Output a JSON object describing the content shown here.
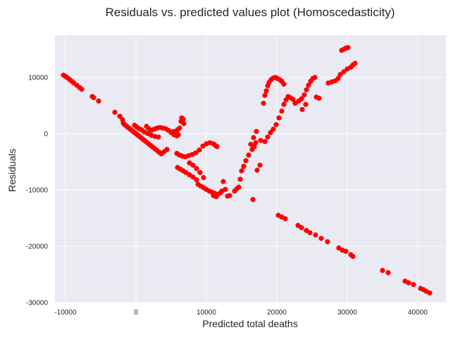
{
  "chart_data": {
    "type": "scatter",
    "title": "Residuals vs. predicted values plot (Homoscedasticity)",
    "xlabel": "Predicted total deaths",
    "ylabel": "Residuals",
    "xlim": [
      -11500,
      44000
    ],
    "ylim": [
      -30000,
      17500
    ],
    "xticks": [
      -10000,
      0,
      10000,
      20000,
      30000,
      40000
    ],
    "yticks": [
      -30000,
      -20000,
      -10000,
      0,
      10000
    ],
    "grid": true,
    "background_color": "#eaeaf2",
    "point_color": "#ff0000",
    "points": [
      [
        -10300,
        10400
      ],
      [
        -10000,
        10200
      ],
      [
        -9700,
        9900
      ],
      [
        -9400,
        9600
      ],
      [
        -9100,
        9300
      ],
      [
        -8800,
        9000
      ],
      [
        -8400,
        8600
      ],
      [
        -8000,
        8200
      ],
      [
        -7700,
        7900
      ],
      [
        -6200,
        6600
      ],
      [
        -6000,
        6400
      ],
      [
        -5300,
        5800
      ],
      [
        -3000,
        3800
      ],
      [
        -2300,
        3100
      ],
      [
        -1900,
        2500
      ],
      [
        -1800,
        1900
      ],
      [
        -1700,
        1700
      ],
      [
        -1500,
        1500
      ],
      [
        -1300,
        1300
      ],
      [
        -1100,
        1100
      ],
      [
        -900,
        900
      ],
      [
        -700,
        700
      ],
      [
        -500,
        500
      ],
      [
        -300,
        300
      ],
      [
        -100,
        100
      ],
      [
        100,
        -100
      ],
      [
        300,
        -300
      ],
      [
        500,
        -500
      ],
      [
        700,
        -700
      ],
      [
        900,
        -900
      ],
      [
        1100,
        -1100
      ],
      [
        1300,
        -1300
      ],
      [
        1500,
        -1500
      ],
      [
        1800,
        -1800
      ],
      [
        2100,
        -2100
      ],
      [
        2400,
        -2400
      ],
      [
        2700,
        -2700
      ],
      [
        3000,
        -3000
      ],
      [
        3300,
        -3300
      ],
      [
        3600,
        -3600
      ],
      [
        4000,
        -3200
      ],
      [
        4400,
        -2800
      ],
      [
        -200,
        1500
      ],
      [
        100,
        1200
      ],
      [
        400,
        900
      ],
      [
        800,
        700
      ],
      [
        1200,
        300
      ],
      [
        1700,
        0
      ],
      [
        2200,
        -300
      ],
      [
        2700,
        -500
      ],
      [
        3200,
        -600
      ],
      [
        1500,
        1300
      ],
      [
        1800,
        900
      ],
      [
        2200,
        600
      ],
      [
        2600,
        800
      ],
      [
        3000,
        1000
      ],
      [
        3400,
        1100
      ],
      [
        3800,
        1000
      ],
      [
        4200,
        900
      ],
      [
        4600,
        600
      ],
      [
        5000,
        200
      ],
      [
        5400,
        -200
      ],
      [
        5800,
        -400
      ],
      [
        6000,
        -200
      ],
      [
        5700,
        100
      ],
      [
        5300,
        400
      ],
      [
        6400,
        2200
      ],
      [
        6500,
        2800
      ],
      [
        6700,
        2600
      ],
      [
        6800,
        1800
      ],
      [
        6200,
        1000
      ],
      [
        5900,
        700
      ],
      [
        5800,
        -3500
      ],
      [
        6200,
        -3800
      ],
      [
        6600,
        -4000
      ],
      [
        7000,
        -4100
      ],
      [
        7500,
        -3900
      ],
      [
        8000,
        -3700
      ],
      [
        8500,
        -3400
      ],
      [
        9000,
        -2900
      ],
      [
        9500,
        -2200
      ],
      [
        10000,
        -1800
      ],
      [
        10500,
        -1600
      ],
      [
        11000,
        -1800
      ],
      [
        11300,
        -2100
      ],
      [
        11500,
        -2300
      ],
      [
        5900,
        -6000
      ],
      [
        6300,
        -6300
      ],
      [
        6700,
        -6600
      ],
      [
        7100,
        -6900
      ],
      [
        7600,
        -7300
      ],
      [
        8100,
        -7700
      ],
      [
        8600,
        -8200
      ],
      [
        7600,
        -5200
      ],
      [
        8100,
        -5600
      ],
      [
        8600,
        -6200
      ],
      [
        9100,
        -6900
      ],
      [
        9600,
        -7800
      ],
      [
        8800,
        -9000
      ],
      [
        9200,
        -9300
      ],
      [
        9600,
        -9600
      ],
      [
        10000,
        -9900
      ],
      [
        10400,
        -10200
      ],
      [
        10800,
        -10400
      ],
      [
        11200,
        -10600
      ],
      [
        11600,
        -10800
      ],
      [
        12000,
        -10500
      ],
      [
        12200,
        -10200
      ],
      [
        11000,
        -11000
      ],
      [
        11400,
        -11200
      ],
      [
        12400,
        -8500
      ],
      [
        12700,
        -9900
      ],
      [
        13000,
        -11100
      ],
      [
        13300,
        -11000
      ],
      [
        14000,
        -10200
      ],
      [
        14300,
        -9800
      ],
      [
        14600,
        -9500
      ],
      [
        14800,
        -8100
      ],
      [
        15000,
        -6600
      ],
      [
        15300,
        -5800
      ],
      [
        15600,
        -4800
      ],
      [
        16000,
        -3800
      ],
      [
        16500,
        -2800
      ],
      [
        16800,
        -2300
      ],
      [
        17000,
        -1600
      ],
      [
        16600,
        -11700
      ],
      [
        17200,
        -6500
      ],
      [
        17600,
        -5600
      ],
      [
        16300,
        -1900
      ],
      [
        16700,
        -700
      ],
      [
        17100,
        400
      ],
      [
        17700,
        -1200
      ],
      [
        18100,
        5400
      ],
      [
        18300,
        6800
      ],
      [
        18500,
        7600
      ],
      [
        18700,
        8500
      ],
      [
        18900,
        9100
      ],
      [
        19200,
        9600
      ],
      [
        19500,
        9900
      ],
      [
        19800,
        10000
      ],
      [
        20100,
        9800
      ],
      [
        20400,
        9600
      ],
      [
        20700,
        9300
      ],
      [
        21000,
        8800
      ],
      [
        18300,
        -1400
      ],
      [
        18700,
        -600
      ],
      [
        19100,
        200
      ],
      [
        19500,
        800
      ],
      [
        19900,
        1600
      ],
      [
        20300,
        2800
      ],
      [
        20700,
        4000
      ],
      [
        21000,
        5200
      ],
      [
        21300,
        6000
      ],
      [
        21600,
        6600
      ],
      [
        21900,
        6400
      ],
      [
        22300,
        6100
      ],
      [
        22600,
        5400
      ],
      [
        23100,
        5800
      ],
      [
        23500,
        6200
      ],
      [
        23900,
        6900
      ],
      [
        24200,
        7800
      ],
      [
        24500,
        8600
      ],
      [
        24800,
        9300
      ],
      [
        25100,
        9800
      ],
      [
        25400,
        10000
      ],
      [
        23600,
        4300
      ],
      [
        24100,
        5200
      ],
      [
        25600,
        6500
      ],
      [
        26000,
        6300
      ],
      [
        20200,
        -14500
      ],
      [
        20700,
        -14800
      ],
      [
        21200,
        -15100
      ],
      [
        23000,
        -16300
      ],
      [
        23500,
        -16700
      ],
      [
        24200,
        -17200
      ],
      [
        24700,
        -17600
      ],
      [
        25500,
        -18000
      ],
      [
        26300,
        -18600
      ],
      [
        27200,
        -19200
      ],
      [
        28800,
        -20300
      ],
      [
        29300,
        -20700
      ],
      [
        29800,
        -20900
      ],
      [
        30500,
        -21500
      ],
      [
        30800,
        -21800
      ],
      [
        27300,
        9000
      ],
      [
        27800,
        9200
      ],
      [
        28300,
        9400
      ],
      [
        28700,
        9800
      ],
      [
        29000,
        10500
      ],
      [
        29500,
        11000
      ],
      [
        30000,
        11500
      ],
      [
        30500,
        11800
      ],
      [
        30800,
        12200
      ],
      [
        31100,
        12500
      ],
      [
        29200,
        14800
      ],
      [
        29500,
        15000
      ],
      [
        29800,
        15200
      ],
      [
        30100,
        15300
      ],
      [
        35000,
        -24300
      ],
      [
        35800,
        -24700
      ],
      [
        38200,
        -26200
      ],
      [
        38700,
        -26500
      ],
      [
        39400,
        -26800
      ],
      [
        40400,
        -27500
      ],
      [
        40800,
        -27700
      ],
      [
        41200,
        -28000
      ],
      [
        41700,
        -28300
      ]
    ]
  }
}
